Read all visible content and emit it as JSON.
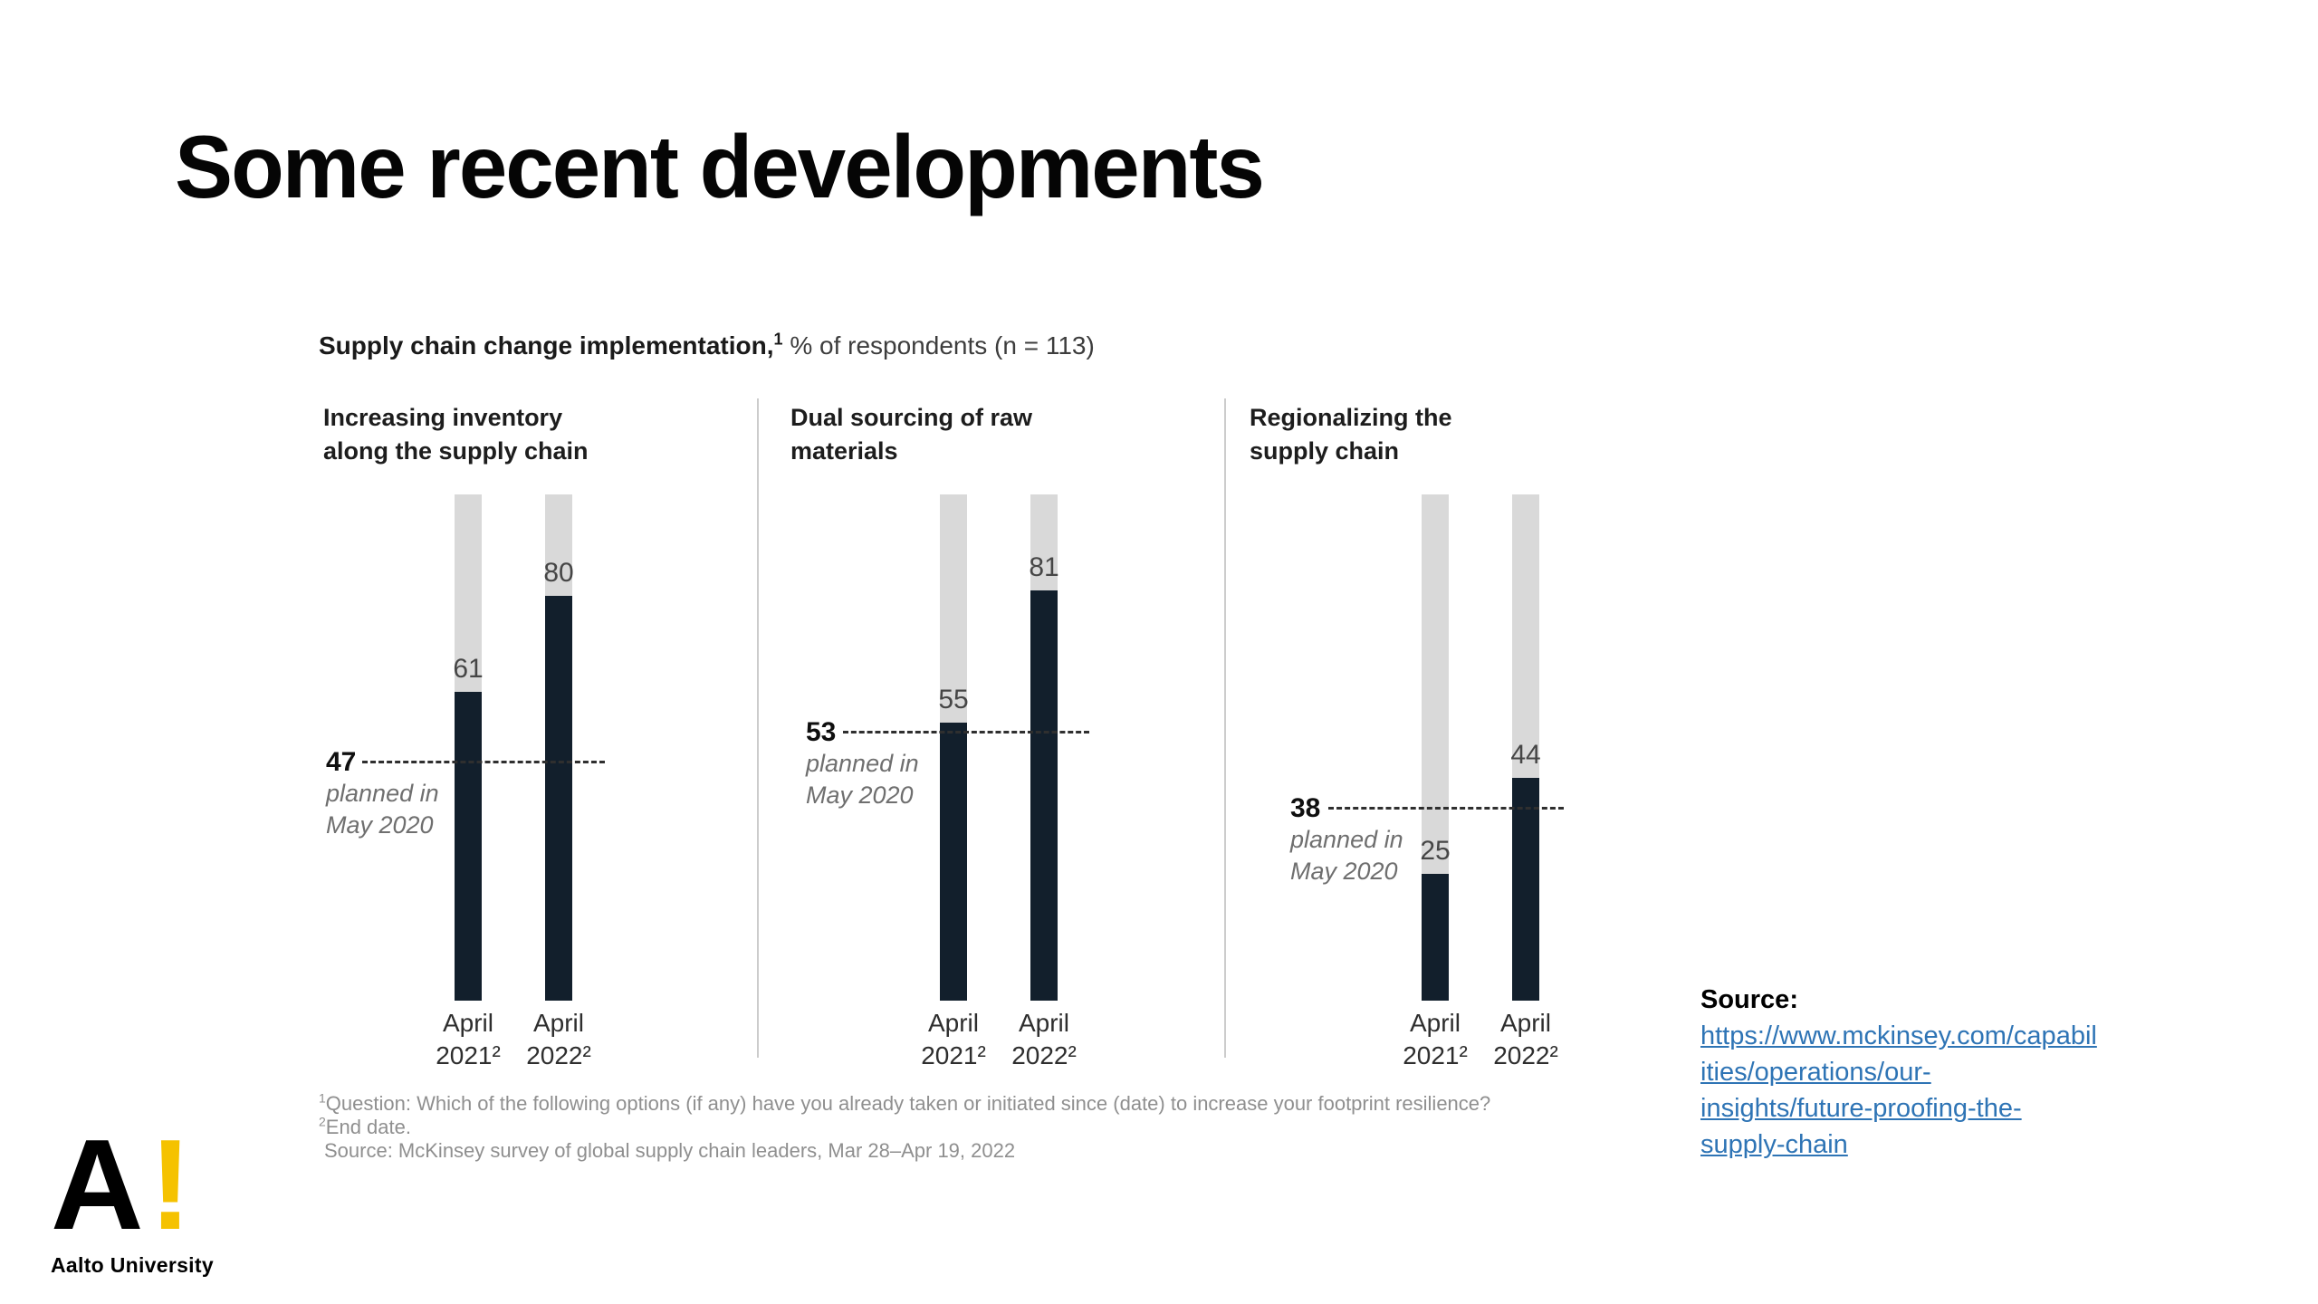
{
  "slide": {
    "title": "Some recent developments"
  },
  "logo": {
    "letter": "A",
    "exclamation": "!",
    "label": "Aalto University",
    "yellow": "#F5C200"
  },
  "source_panel": {
    "heading": "Source:",
    "link_lines": [
      "https://www.mckinsey.com/capabil",
      "ities/operations/our-",
      "insights/future-proofing-the-",
      "supply-chain"
    ],
    "link_color": "#2E74B5"
  },
  "chart_data": {
    "type": "bar",
    "title_bold": "Supply chain change implementation,",
    "title_superscript": "1",
    "title_rest": " % of respondents (n = 113)",
    "ylim": [
      0,
      100
    ],
    "unit": "% of respondents",
    "bar_color": "#121F2C",
    "track_color": "#D9D9D9",
    "grid": false,
    "legend": false,
    "categories": [
      [
        "April",
        "2021²"
      ],
      [
        "April",
        "2022²"
      ]
    ],
    "panels": [
      {
        "header_lines": [
          "Increasing inventory",
          "along the supply chain"
        ],
        "values": [
          61,
          80
        ],
        "planned": {
          "value": 47,
          "note_lines": [
            "planned in",
            "May 2020"
          ]
        }
      },
      {
        "header_lines": [
          "Dual sourcing of raw",
          "materials"
        ],
        "values": [
          55,
          81
        ],
        "planned": {
          "value": 53,
          "note_lines": [
            "planned in",
            "May 2020"
          ]
        }
      },
      {
        "header_lines": [
          "Regionalizing the",
          "supply chain"
        ],
        "values": [
          25,
          44
        ],
        "planned": {
          "value": 38,
          "note_lines": [
            "planned in",
            "May 2020"
          ]
        }
      }
    ],
    "footnotes": [
      {
        "sup": "1",
        "text": "Question: Which of the following options (if any) have you already taken or initiated since (date) to increase your footprint resilience?"
      },
      {
        "sup": "2",
        "text": "End date."
      },
      {
        "sup": "",
        "text": "Source: McKinsey survey of global supply chain leaders, Mar 28–Apr 19, 2022"
      }
    ]
  }
}
